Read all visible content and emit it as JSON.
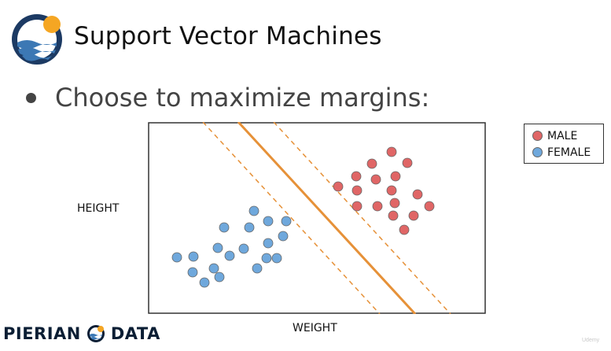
{
  "slide": {
    "title": "Support Vector Machines",
    "bullet": "Choose to maximize margins:",
    "logo_icon": "pierian-wave-sun-icon",
    "brand_left": "PIERIAN",
    "brand_right": "DATA",
    "watermark": "Udemy"
  },
  "colors": {
    "male": "#e06666",
    "female": "#6fa8dc",
    "separator": "#e69138",
    "logo_navy": "#1c3a63",
    "logo_sun": "#f5a623"
  },
  "chart_data": {
    "type": "scatter",
    "xlabel": "WEIGHT",
    "ylabel": "HEIGHT",
    "xlim": [
      0,
      430
    ],
    "ylim": [
      0,
      244
    ],
    "grid": false,
    "axes_ticks": false,
    "legend_position": "outside-right-top",
    "legend": [
      "MALE",
      "FEMALE"
    ],
    "series": [
      {
        "name": "MALE",
        "points": [
          [
            310,
            206
          ],
          [
            330,
            192
          ],
          [
            285,
            191
          ],
          [
            315,
            175
          ],
          [
            265,
            175
          ],
          [
            290,
            171
          ],
          [
            242,
            162
          ],
          [
            310,
            157
          ],
          [
            266,
            157
          ],
          [
            343,
            152
          ],
          [
            266,
            137
          ],
          [
            292,
            137
          ],
          [
            314,
            141
          ],
          [
            358,
            137
          ],
          [
            338,
            125
          ],
          [
            312,
            125
          ],
          [
            326,
            107
          ]
        ]
      },
      {
        "name": "FEMALE",
        "points": [
          [
            135,
            131
          ],
          [
            153,
            118
          ],
          [
            176,
            118
          ],
          [
            97,
            110
          ],
          [
            129,
            110
          ],
          [
            172,
            99
          ],
          [
            153,
            90
          ],
          [
            89,
            84
          ],
          [
            122,
            83
          ],
          [
            151,
            71
          ],
          [
            164,
            71
          ],
          [
            37,
            72
          ],
          [
            58,
            73
          ],
          [
            104,
            74
          ],
          [
            84,
            58
          ],
          [
            139,
            58
          ],
          [
            57,
            53
          ],
          [
            91,
            47
          ],
          [
            72,
            40
          ]
        ]
      }
    ],
    "lines": [
      {
        "role": "separator",
        "style": "solid",
        "from": [
          115,
          244
        ],
        "to": [
          340,
          0
        ]
      },
      {
        "role": "margin",
        "style": "dashed",
        "from": [
          70,
          244
        ],
        "to": [
          295,
          0
        ]
      },
      {
        "role": "margin",
        "style": "dashed",
        "from": [
          160,
          244
        ],
        "to": [
          385,
          0
        ]
      }
    ]
  }
}
